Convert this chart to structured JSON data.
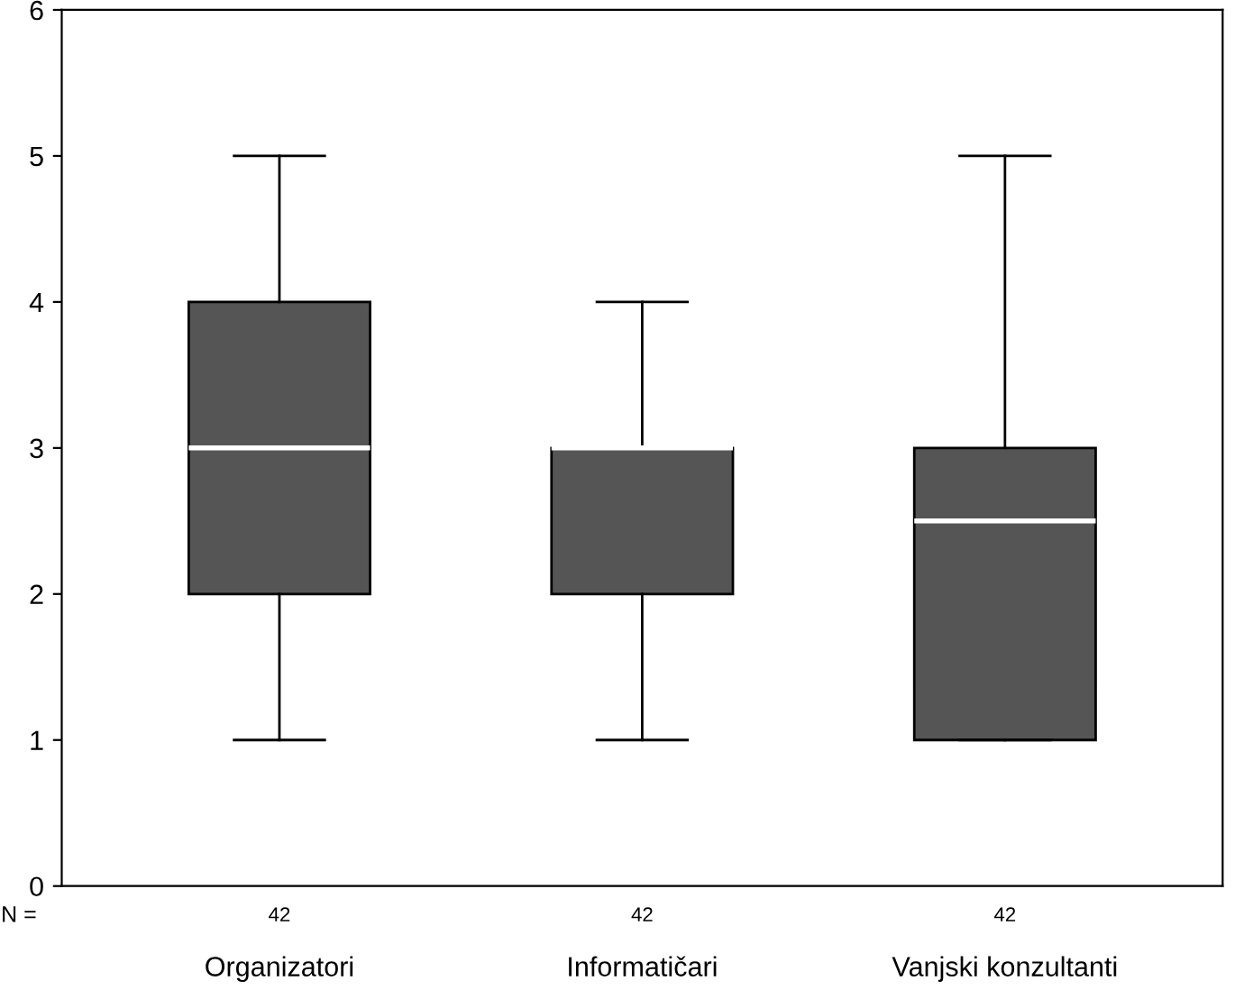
{
  "chart_data": {
    "type": "box",
    "categories": [
      "Organizatori",
      "Informatičari",
      "Vanjski konzultanti"
    ],
    "boxes": [
      {
        "low": 1,
        "q1": 2,
        "median": 3,
        "q3": 4,
        "high": 5
      },
      {
        "low": 1,
        "q1": 2,
        "median": 3,
        "q3": 3,
        "high": 4
      },
      {
        "low": 1,
        "q1": 1,
        "median": 2.5,
        "q3": 3,
        "high": 5
      }
    ],
    "color": "#555555",
    "ylim": [
      0,
      6
    ],
    "yticks": [
      0,
      1,
      2,
      3,
      4,
      5,
      6
    ],
    "grid": false,
    "annotations": [
      "N =",
      "42",
      "42",
      "42"
    ]
  }
}
